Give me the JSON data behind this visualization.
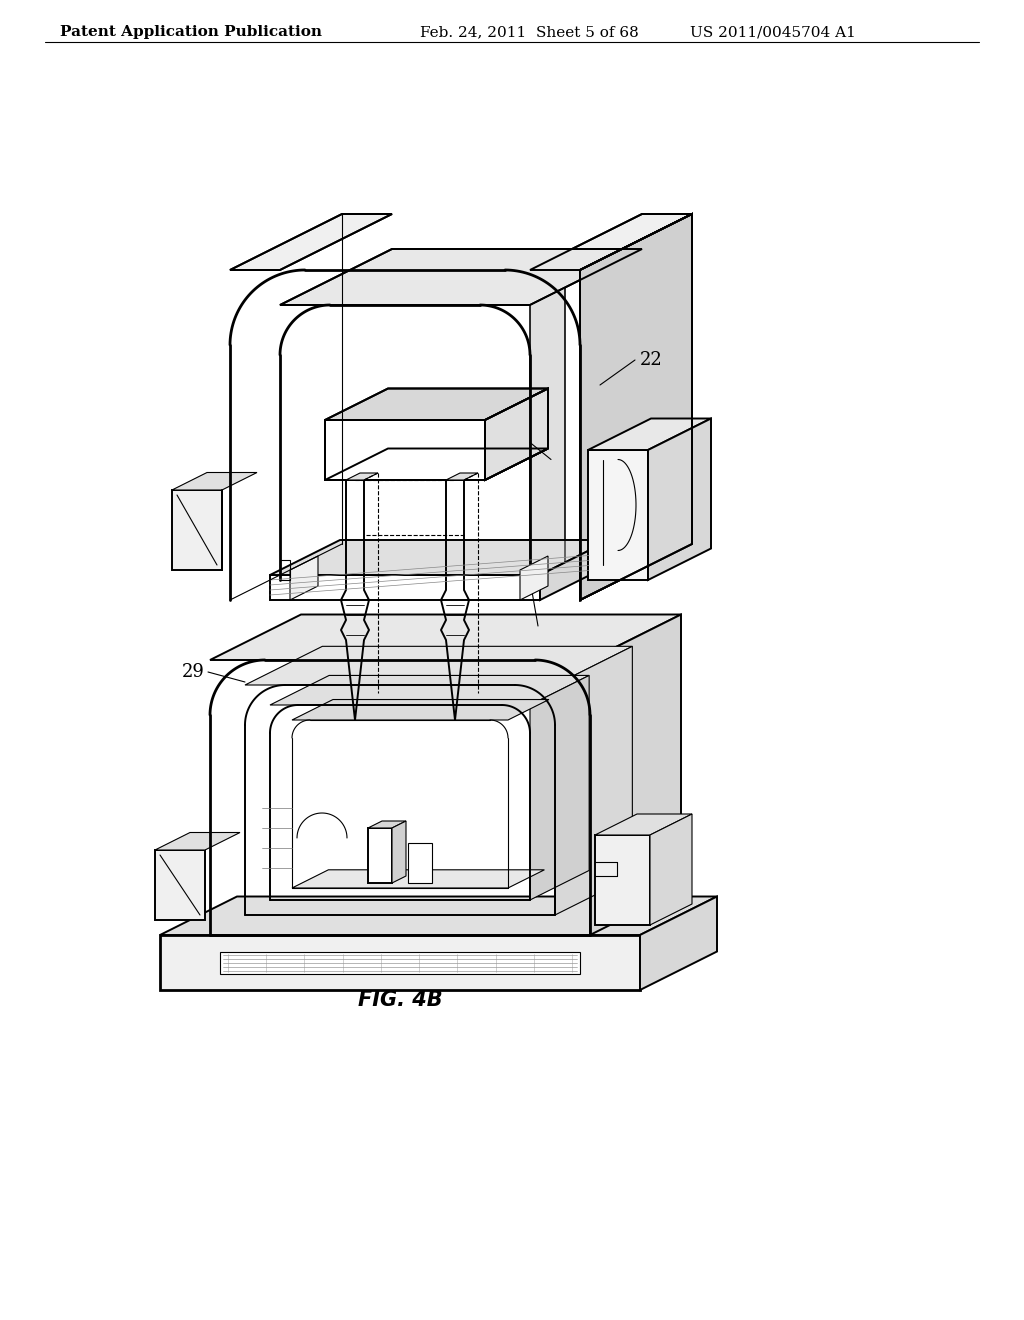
{
  "background_color": "#ffffff",
  "line_color": "#000000",
  "header_left": "Patent Application Publication",
  "header_center": "Feb. 24, 2011  Sheet 5 of 68",
  "header_right": "US 2011/0045704 A1",
  "figure_label": "FIG. 4B",
  "label_22": "22",
  "label_29": "29",
  "header_fontsize": 11,
  "label_fontsize": 13,
  "fig_label_fontsize": 15,
  "lw_thick": 2.0,
  "lw_med": 1.4,
  "lw_thin": 0.8
}
